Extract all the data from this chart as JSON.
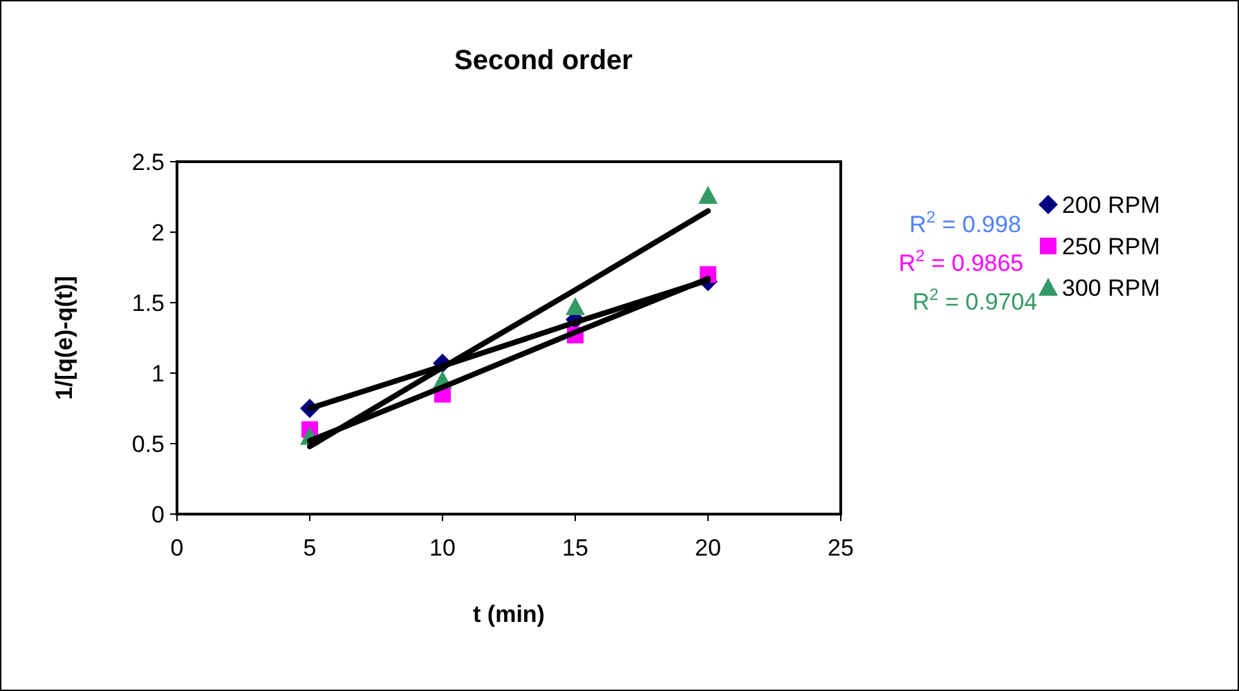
{
  "chart_data": {
    "type": "scatter",
    "title": "Second order",
    "xlabel": "t (min)",
    "ylabel": "1/[q(e)-q(t)]",
    "x": [
      5,
      10,
      15,
      20
    ],
    "series": [
      {
        "name": "200 RPM",
        "color": "#000080",
        "marker": "diamond",
        "values": [
          0.75,
          1.07,
          1.38,
          1.65
        ]
      },
      {
        "name": "250 RPM",
        "color": "#ff00ff",
        "marker": "square",
        "values": [
          0.6,
          0.85,
          1.27,
          1.7
        ]
      },
      {
        "name": "300 RPM",
        "color": "#339966",
        "marker": "triangle",
        "values": [
          0.55,
          0.95,
          1.47,
          2.26
        ]
      },
      {
        "type": "line",
        "color": "#000000",
        "marker": "none",
        "values": [
          0.75,
          1.05,
          1.36,
          1.66
        ]
      },
      {
        "type": "line",
        "color": "#000000",
        "marker": "none",
        "values": [
          0.52,
          0.9,
          1.29,
          1.67
        ]
      },
      {
        "type": "line",
        "color": "#000000",
        "marker": "none",
        "values": [
          0.48,
          1.04,
          1.59,
          2.15
        ]
      }
    ],
    "annotations": [
      "R$^{2}$ = 0.998",
      "R$^{2}$ = 0.9865",
      "R$^{2}$ = 0.9704"
    ],
    "xlim": [
      0,
      25
    ],
    "xticks": [
      0,
      5,
      10,
      15,
      20,
      25
    ],
    "ylim": [
      0,
      2.5
    ],
    "yticks": [
      0,
      0.5,
      1,
      1.5,
      2,
      2.5
    ],
    "grid": false,
    "legend": "right",
    "line_style": "solid"
  }
}
